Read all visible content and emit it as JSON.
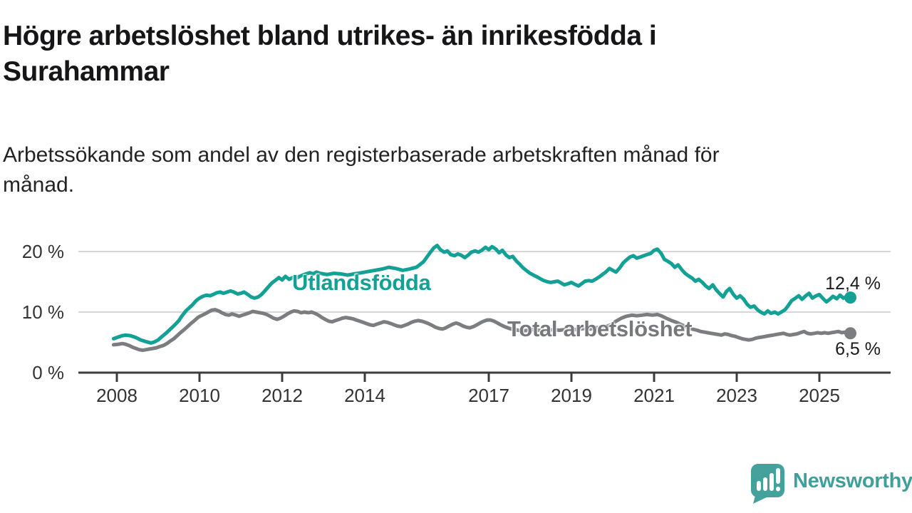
{
  "header": {
    "title_lines": [
      "Högre arbetslöshet bland utrikes- än inrikesfödda i",
      "Surahammar"
    ],
    "subtitle_lines": [
      "Arbetssökande som andel av den registerbaserade arbetskraften månad för",
      "månad."
    ]
  },
  "branding": {
    "logo_text": "Newsworthy",
    "logo_color": "#3f9f9a",
    "logo_icon": "speech-bubble-with-bar-chart-and-exclamation"
  },
  "chart_data": {
    "type": "line",
    "title": "Högre arbetslöshet bland utrikes- än inrikesfödda i Surahammar",
    "subtitle": "Arbetssökande som andel av den registerbaserade arbetskraften månad för månad.",
    "xlabel": "",
    "ylabel": "",
    "unit": "%",
    "grid": "horizontal",
    "grid_color": "#d7d7d7",
    "axis_color": "#3c3c40",
    "tick_label_color": "#333336",
    "xlim": [
      2007.1,
      2026.7
    ],
    "ylim": [
      0,
      21.5
    ],
    "x_ticks": [
      2008,
      2010,
      2012,
      2014,
      2017,
      2019,
      2021,
      2023,
      2025
    ],
    "y_ticks": [
      0,
      10,
      20
    ],
    "y_tick_labels": [
      "0 %",
      "10 %",
      "20 %"
    ],
    "legend_position": "inline-labels-on-lines",
    "series": [
      {
        "name": "Utlandsfödda",
        "color": "#13a195",
        "end_value": 12.4,
        "end_label": "12,4 %",
        "x": [
          2007.92,
          2008.04,
          2008.13,
          2008.21,
          2008.33,
          2008.46,
          2008.58,
          2008.71,
          2008.83,
          2008.92,
          2009.0,
          2009.08,
          2009.17,
          2009.25,
          2009.33,
          2009.42,
          2009.5,
          2009.58,
          2009.67,
          2009.75,
          2009.83,
          2009.92,
          2010.0,
          2010.08,
          2010.17,
          2010.25,
          2010.33,
          2010.42,
          2010.5,
          2010.58,
          2010.67,
          2010.75,
          2010.83,
          2010.92,
          2011.0,
          2011.08,
          2011.17,
          2011.25,
          2011.33,
          2011.42,
          2011.5,
          2011.58,
          2011.67,
          2011.75,
          2011.83,
          2011.92,
          2012.0,
          2012.08,
          2012.17,
          2012.25,
          2012.33,
          2012.42,
          2012.5,
          2012.58,
          2012.67,
          2012.75,
          2012.83,
          2012.92,
          2013.08,
          2013.25,
          2013.42,
          2013.58,
          2013.75,
          2013.92,
          2014.08,
          2014.25,
          2014.42,
          2014.58,
          2014.75,
          2014.92,
          2015.08,
          2015.25,
          2015.42,
          2015.58,
          2015.67,
          2015.75,
          2015.83,
          2015.92,
          2016.0,
          2016.08,
          2016.17,
          2016.25,
          2016.33,
          2016.42,
          2016.5,
          2016.58,
          2016.67,
          2016.75,
          2016.83,
          2016.92,
          2017.0,
          2017.08,
          2017.17,
          2017.25,
          2017.33,
          2017.42,
          2017.5,
          2017.58,
          2017.67,
          2017.75,
          2017.83,
          2017.92,
          2018.0,
          2018.08,
          2018.17,
          2018.25,
          2018.33,
          2018.42,
          2018.5,
          2018.58,
          2018.67,
          2018.75,
          2018.83,
          2018.92,
          2019.0,
          2019.08,
          2019.17,
          2019.25,
          2019.33,
          2019.42,
          2019.5,
          2019.58,
          2019.67,
          2019.75,
          2019.83,
          2019.92,
          2020.0,
          2020.08,
          2020.17,
          2020.25,
          2020.33,
          2020.42,
          2020.5,
          2020.58,
          2020.67,
          2020.75,
          2020.83,
          2020.92,
          2021.0,
          2021.08,
          2021.17,
          2021.25,
          2021.33,
          2021.42,
          2021.5,
          2021.58,
          2021.67,
          2021.75,
          2021.83,
          2021.92,
          2022.0,
          2022.08,
          2022.17,
          2022.25,
          2022.33,
          2022.42,
          2022.5,
          2022.58,
          2022.67,
          2022.75,
          2022.83,
          2022.92,
          2023.0,
          2023.08,
          2023.17,
          2023.25,
          2023.33,
          2023.42,
          2023.5,
          2023.58,
          2023.67,
          2023.75,
          2023.83,
          2023.92,
          2024.0,
          2024.08,
          2024.17,
          2024.25,
          2024.33,
          2024.42,
          2024.5,
          2024.58,
          2024.67,
          2024.75,
          2024.83,
          2024.92,
          2025.0,
          2025.08,
          2025.17,
          2025.25,
          2025.33,
          2025.42,
          2025.5,
          2025.58,
          2025.67,
          2025.75
        ],
        "values": [
          5.6,
          5.9,
          6.1,
          6.2,
          6.1,
          5.8,
          5.4,
          5.1,
          4.9,
          5.1,
          5.4,
          5.9,
          6.4,
          6.9,
          7.4,
          8.0,
          8.6,
          9.4,
          10.2,
          10.7,
          11.2,
          11.9,
          12.3,
          12.6,
          12.8,
          12.7,
          12.9,
          13.2,
          13.3,
          13.1,
          13.3,
          13.5,
          13.3,
          13.0,
          13.1,
          13.3,
          12.9,
          12.5,
          12.3,
          12.5,
          12.9,
          13.5,
          14.2,
          14.8,
          15.2,
          15.7,
          15.3,
          15.9,
          15.4,
          15.7,
          15.5,
          15.9,
          16.1,
          16.3,
          16.5,
          16.3,
          16.6,
          16.4,
          16.2,
          16.4,
          16.3,
          16.1,
          16.3,
          16.5,
          16.7,
          16.9,
          17.1,
          17.4,
          17.2,
          16.9,
          17.1,
          17.4,
          18.3,
          19.8,
          20.6,
          21.0,
          20.3,
          19.9,
          20.1,
          19.5,
          19.3,
          19.6,
          19.4,
          19.0,
          19.4,
          19.9,
          20.1,
          19.9,
          20.2,
          20.7,
          20.3,
          20.8,
          20.4,
          19.8,
          20.2,
          19.4,
          19.0,
          19.2,
          18.4,
          17.9,
          17.3,
          16.8,
          16.4,
          16.1,
          15.8,
          15.5,
          15.2,
          15.0,
          14.9,
          15.0,
          15.1,
          14.8,
          14.5,
          14.7,
          14.9,
          14.6,
          14.3,
          14.7,
          15.1,
          15.2,
          15.1,
          15.4,
          15.8,
          16.2,
          16.6,
          17.2,
          16.9,
          16.6,
          17.3,
          18.1,
          18.6,
          19.1,
          19.3,
          18.9,
          19.1,
          19.3,
          19.5,
          19.7,
          20.2,
          20.4,
          19.7,
          18.7,
          18.4,
          18.0,
          17.4,
          17.8,
          17.0,
          16.4,
          16.0,
          15.6,
          15.1,
          15.4,
          14.9,
          14.3,
          13.9,
          14.5,
          13.7,
          13.1,
          12.5,
          13.4,
          13.9,
          12.9,
          12.3,
          12.7,
          12.1,
          11.3,
          10.8,
          11.0,
          10.4,
          10.0,
          9.7,
          10.2,
          9.8,
          10.0,
          9.7,
          10.0,
          10.4,
          11.1,
          11.9,
          12.3,
          12.7,
          12.1,
          12.7,
          13.1,
          12.3,
          12.7,
          12.9,
          12.3,
          11.7,
          12.1,
          12.6,
          12.2,
          12.8,
          12.3,
          12.6,
          12.4
        ]
      },
      {
        "name": "Total arbetslöshet",
        "color": "#7c7d81",
        "end_value": 6.5,
        "end_label": "6,5 %",
        "x": [
          2007.92,
          2008.04,
          2008.13,
          2008.21,
          2008.29,
          2008.38,
          2008.46,
          2008.54,
          2008.63,
          2008.71,
          2008.79,
          2008.88,
          2008.96,
          2009.04,
          2009.13,
          2009.21,
          2009.29,
          2009.38,
          2009.46,
          2009.54,
          2009.63,
          2009.71,
          2009.79,
          2009.88,
          2009.96,
          2010.04,
          2010.13,
          2010.21,
          2010.29,
          2010.38,
          2010.46,
          2010.54,
          2010.63,
          2010.71,
          2010.79,
          2010.88,
          2010.96,
          2011.04,
          2011.13,
          2011.21,
          2011.29,
          2011.38,
          2011.46,
          2011.54,
          2011.63,
          2011.71,
          2011.79,
          2011.88,
          2011.96,
          2012.04,
          2012.13,
          2012.21,
          2012.29,
          2012.38,
          2012.46,
          2012.54,
          2012.63,
          2012.71,
          2012.79,
          2012.88,
          2012.96,
          2013.04,
          2013.13,
          2013.21,
          2013.29,
          2013.38,
          2013.46,
          2013.54,
          2013.63,
          2013.71,
          2013.79,
          2013.88,
          2013.96,
          2014.04,
          2014.13,
          2014.21,
          2014.29,
          2014.38,
          2014.46,
          2014.54,
          2014.63,
          2014.71,
          2014.79,
          2014.88,
          2014.96,
          2015.04,
          2015.13,
          2015.21,
          2015.29,
          2015.38,
          2015.46,
          2015.54,
          2015.63,
          2015.71,
          2015.79,
          2015.88,
          2015.96,
          2016.04,
          2016.13,
          2016.21,
          2016.29,
          2016.38,
          2016.46,
          2016.54,
          2016.63,
          2016.71,
          2016.79,
          2016.88,
          2016.96,
          2017.04,
          2017.13,
          2017.21,
          2017.29,
          2017.38,
          2017.46,
          2017.54,
          2017.63,
          2017.71,
          2017.83,
          2017.96,
          2018.08,
          2018.21,
          2018.33,
          2018.46,
          2018.58,
          2018.71,
          2018.83,
          2018.96,
          2019.08,
          2019.21,
          2019.33,
          2019.46,
          2019.58,
          2019.71,
          2019.83,
          2019.96,
          2020.08,
          2020.21,
          2020.33,
          2020.46,
          2020.58,
          2020.71,
          2020.83,
          2020.96,
          2021.08,
          2021.17,
          2021.29,
          2021.42,
          2021.54,
          2021.67,
          2021.79,
          2021.92,
          2022.04,
          2022.13,
          2022.21,
          2022.29,
          2022.38,
          2022.46,
          2022.54,
          2022.63,
          2022.71,
          2022.79,
          2022.88,
          2022.96,
          2023.04,
          2023.13,
          2023.21,
          2023.29,
          2023.38,
          2023.46,
          2023.54,
          2023.63,
          2023.71,
          2023.79,
          2023.88,
          2023.96,
          2024.04,
          2024.13,
          2024.21,
          2024.29,
          2024.38,
          2024.46,
          2024.54,
          2024.63,
          2024.71,
          2024.79,
          2024.88,
          2024.96,
          2025.04,
          2025.13,
          2025.21,
          2025.29,
          2025.38,
          2025.46,
          2025.54,
          2025.63,
          2025.75
        ],
        "values": [
          4.6,
          4.7,
          4.8,
          4.7,
          4.5,
          4.2,
          4.0,
          3.8,
          3.7,
          3.8,
          3.9,
          4.0,
          4.1,
          4.3,
          4.5,
          4.8,
          5.2,
          5.6,
          6.1,
          6.6,
          7.1,
          7.6,
          8.1,
          8.6,
          9.1,
          9.4,
          9.7,
          10.0,
          10.3,
          10.4,
          10.2,
          9.9,
          9.6,
          9.5,
          9.7,
          9.5,
          9.3,
          9.5,
          9.7,
          9.9,
          10.1,
          10.0,
          9.9,
          9.8,
          9.6,
          9.3,
          9.0,
          8.8,
          9.0,
          9.3,
          9.7,
          10.0,
          10.2,
          10.1,
          9.9,
          10.0,
          9.9,
          10.0,
          9.8,
          9.5,
          9.1,
          8.8,
          8.5,
          8.4,
          8.6,
          8.8,
          9.0,
          9.1,
          9.0,
          8.9,
          8.7,
          8.5,
          8.3,
          8.1,
          7.9,
          7.8,
          8.0,
          8.2,
          8.4,
          8.3,
          8.1,
          7.9,
          7.7,
          7.6,
          7.8,
          8.0,
          8.3,
          8.5,
          8.6,
          8.5,
          8.3,
          8.1,
          7.8,
          7.5,
          7.3,
          7.2,
          7.4,
          7.7,
          8.0,
          8.2,
          8.0,
          7.7,
          7.5,
          7.4,
          7.6,
          7.9,
          8.2,
          8.5,
          8.7,
          8.7,
          8.5,
          8.2,
          7.9,
          7.6,
          7.4,
          7.2,
          7.1,
          7.0,
          6.9,
          7.0,
          7.1,
          7.0,
          6.9,
          7.0,
          7.1,
          7.0,
          7.1,
          7.2,
          7.1,
          7.2,
          7.3,
          7.2,
          7.4,
          7.5,
          7.6,
          7.9,
          8.5,
          9.0,
          9.3,
          9.5,
          9.4,
          9.5,
          9.6,
          9.5,
          9.6,
          9.4,
          9.0,
          8.6,
          8.3,
          7.9,
          7.5,
          7.2,
          7.0,
          6.8,
          6.7,
          6.6,
          6.5,
          6.4,
          6.3,
          6.2,
          6.4,
          6.3,
          6.1,
          6.0,
          5.8,
          5.6,
          5.5,
          5.4,
          5.5,
          5.7,
          5.8,
          5.9,
          6.0,
          6.1,
          6.2,
          6.3,
          6.4,
          6.5,
          6.3,
          6.2,
          6.3,
          6.4,
          6.6,
          6.8,
          6.5,
          6.4,
          6.5,
          6.6,
          6.5,
          6.6,
          6.5,
          6.6,
          6.7,
          6.8,
          6.6,
          6.7,
          6.5
        ]
      }
    ]
  }
}
